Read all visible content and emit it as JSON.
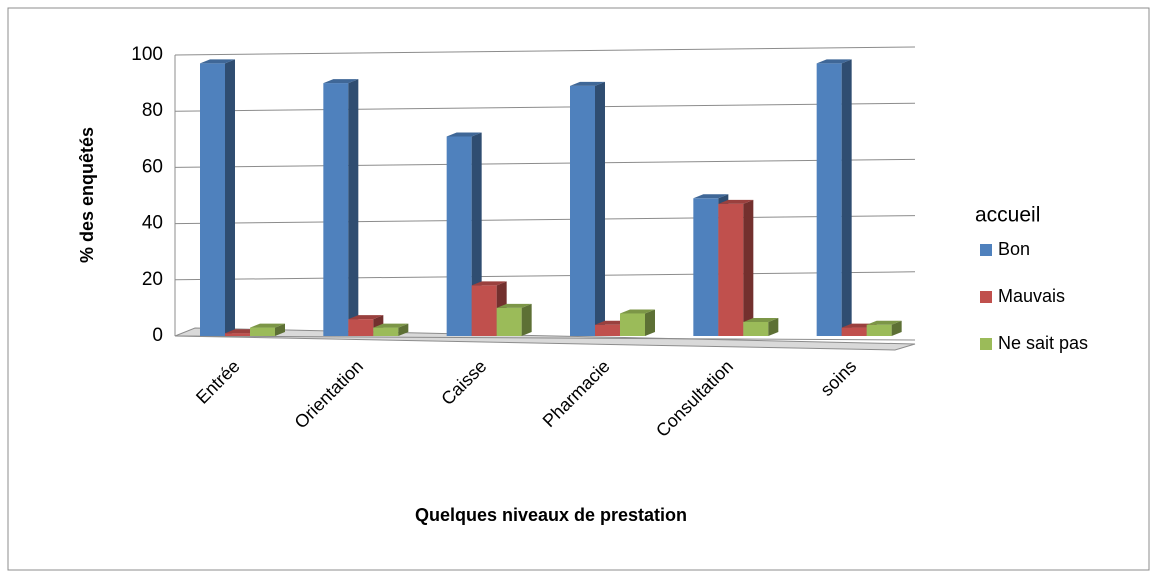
{
  "chart_data": {
    "type": "bar3d",
    "y_label": "% des enquêtés",
    "x_label": "Quelques niveaux de prestation",
    "legend_title": "accueil",
    "categories": [
      "Entrée",
      "Orientation",
      "Caisse",
      "Pharmacie",
      "Consultation",
      "soins"
    ],
    "series": [
      {
        "name": "Bon",
        "color": "#4f81bd",
        "values": [
          97,
          90,
          71,
          89,
          49,
          97
        ]
      },
      {
        "name": "Mauvais",
        "color": "#c0504d",
        "values": [
          1,
          6,
          18,
          4,
          47,
          3
        ]
      },
      {
        "name": "Ne sait pas",
        "color": "#9bbb59",
        "values": [
          3,
          3,
          10,
          8,
          5,
          4
        ]
      }
    ],
    "ylim": [
      0,
      100
    ],
    "yticks": [
      0,
      20,
      40,
      60,
      80,
      100
    ],
    "grid": true
  }
}
